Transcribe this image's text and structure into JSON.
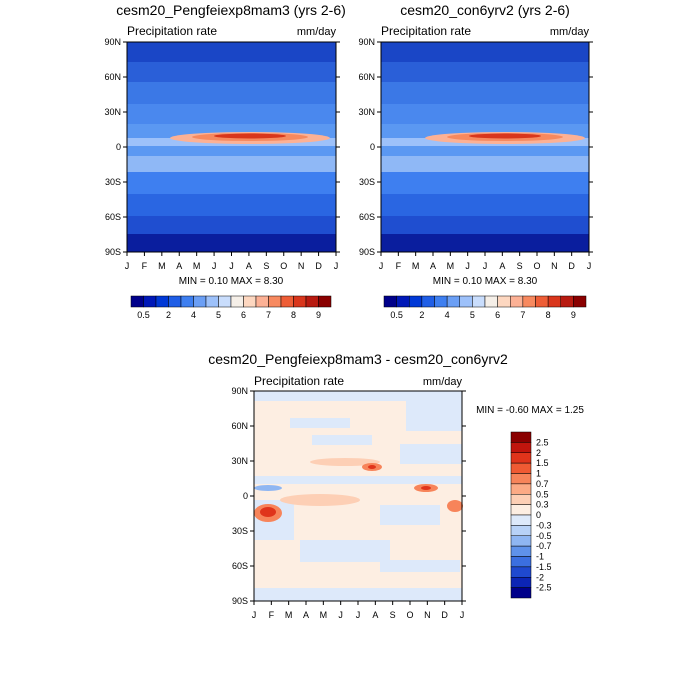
{
  "chart_data": [
    {
      "type": "heatmap",
      "title": "cesm20_Pengfeiexp8mam3 (yrs 2-6)",
      "left_label": "Precipitation rate",
      "right_label": "mm/day",
      "stats": "MIN =   0.10 MAX =   8.30",
      "x_ticks": [
        "J",
        "F",
        "M",
        "A",
        "M",
        "J",
        "J",
        "A",
        "S",
        "O",
        "N",
        "D",
        "J"
      ],
      "y_ticks": [
        "90N",
        "60N",
        "30N",
        "0",
        "30S",
        "60S",
        "90S"
      ],
      "ylim": [
        -90,
        90
      ],
      "colorbar_labels": [
        "0.5",
        "2",
        "4",
        "5",
        "6",
        "7",
        "8",
        "9"
      ],
      "colorbar_colors": [
        "#00008a",
        "#0018b8",
        "#0038d6",
        "#1f5ee6",
        "#3e7ff0",
        "#6b9ff5",
        "#9dc1fa",
        "#c9ddfc",
        "#f5efe8",
        "#fdd7c0",
        "#fcb195",
        "#f7895f",
        "#ee5d36",
        "#d9361c",
        "#b81a10",
        "#8a0000"
      ]
    },
    {
      "type": "heatmap",
      "title": "cesm20_con6yrv2 (yrs 2-6)",
      "left_label": "Precipitation rate",
      "right_label": "mm/day",
      "stats": "MIN =   0.10 MAX =   8.30",
      "x_ticks": [
        "J",
        "F",
        "M",
        "A",
        "M",
        "J",
        "J",
        "A",
        "S",
        "O",
        "N",
        "D",
        "J"
      ],
      "y_ticks": [
        "90N",
        "60N",
        "30N",
        "0",
        "30S",
        "60S",
        "90S"
      ],
      "ylim": [
        -90,
        90
      ],
      "colorbar_labels": [
        "0.5",
        "2",
        "4",
        "5",
        "6",
        "7",
        "8",
        "9"
      ]
    },
    {
      "type": "heatmap",
      "title": "cesm20_Pengfeiexp8mam3 - cesm20_con6yrv2",
      "left_label": "Precipitation rate",
      "right_label": "mm/day",
      "stats": "MIN =  -0.60 MAX =   1.25",
      "x_ticks": [
        "J",
        "F",
        "M",
        "A",
        "M",
        "J",
        "J",
        "A",
        "S",
        "O",
        "N",
        "D",
        "J"
      ],
      "y_ticks": [
        "90N",
        "60N",
        "30N",
        "0",
        "30S",
        "60S",
        "90S"
      ],
      "ylim": [
        -90,
        90
      ],
      "colorbar_labels": [
        "2.5",
        "2",
        "1.5",
        "1",
        "0.7",
        "0.5",
        "0.3",
        "0",
        "-0.3",
        "-0.5",
        "-0.7",
        "-1",
        "-1.5",
        "-2",
        "-2.5"
      ],
      "colorbar_colors": [
        "#8a0000",
        "#c0150d",
        "#e0341b",
        "#f05a33",
        "#f7845a",
        "#fcaa85",
        "#fdcfb5",
        "#fdeee2",
        "#dde9fa",
        "#b8d2f7",
        "#8fb6f2",
        "#5f92ea",
        "#3b6fe0",
        "#1f49cf",
        "#0c25b5",
        "#00008a"
      ]
    }
  ]
}
